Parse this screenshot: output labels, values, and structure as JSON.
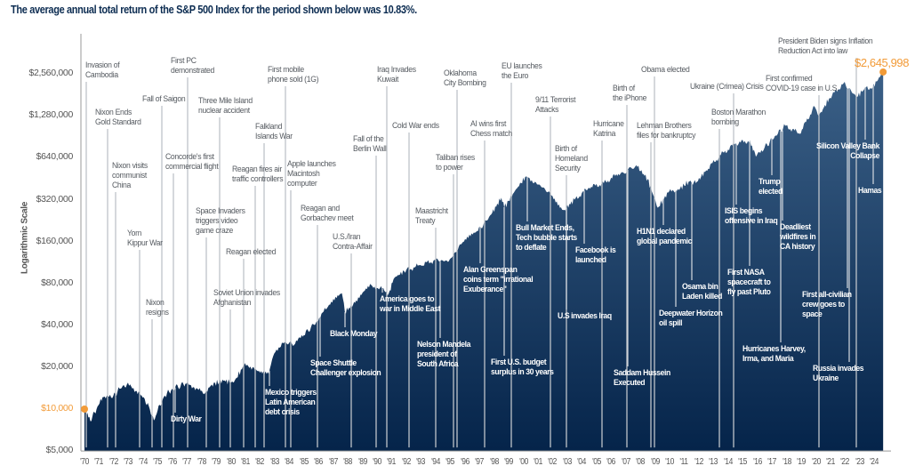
{
  "chart_data": {
    "type": "area",
    "title": "The average annual total return of the S&P 500 Index for the period shown below was 10.83%.",
    "ylabel": "Logarithmic Scale",
    "yscale": "log",
    "ylim": [
      5000,
      2560000
    ],
    "ytick_labels": [
      "$5,000",
      "$10,000",
      "$20,000",
      "$40,000",
      "$80,000",
      "$160,000",
      "$320,000",
      "$640,000",
      "$1,280,000",
      "$2,560,000"
    ],
    "ytick_values": [
      5000,
      10000,
      20000,
      40000,
      80000,
      160000,
      320000,
      640000,
      1280000,
      2560000
    ],
    "xtick_labels": [
      "'70",
      "'71",
      "'72",
      "'73",
      "'74",
      "'75",
      "'76",
      "'77",
      "'78",
      "'79",
      "'80",
      "'81",
      "'82",
      "'83",
      "'84",
      "'85",
      "'86",
      "'87",
      "'88",
      "'89",
      "'90",
      "'91",
      "'92",
      "'93",
      "'94",
      "'95",
      "'96",
      "'97",
      "'98",
      "'99",
      "'00",
      "'01",
      "'02",
      "'03",
      "'04",
      "'05",
      "'06",
      "'07",
      "'08",
      "'09",
      "'10",
      "'11",
      "'12",
      "'13",
      "'14",
      "'15",
      "'16",
      "'17",
      "'18",
      "'19",
      "'20",
      "'21",
      "'22",
      "'23",
      "'24"
    ],
    "grid": false,
    "start_label": "$10,000",
    "end_label": "$2,645,998",
    "series": [
      {
        "x": [
          1970.0,
          1970.4,
          1970.9,
          1971.3,
          1971.9,
          1972.4,
          1972.9,
          1973.5,
          1973.9,
          1974.4,
          1974.75,
          1975.0,
          1975.5,
          1976.0,
          1976.9,
          1977.5,
          1978.1,
          1978.7,
          1979.5,
          1980.2,
          1980.9,
          1981.5,
          1982.6,
          1982.9,
          1983.5,
          1984.4,
          1985.0,
          1985.9,
          1986.5,
          1987.6,
          1987.8,
          1988.5,
          1989.6,
          1990.2,
          1990.8,
          1991.2,
          1992.0,
          1993.0,
          1994.0,
          1994.9,
          1995.8,
          1996.9,
          1997.8,
          1998.5,
          1998.7,
          1999.5,
          2000.2,
          2000.8,
          2001.7,
          2002.8,
          2003.5,
          2004.5,
          2005.5,
          2006.5,
          2007.8,
          2008.5,
          2009.2,
          2009.9,
          2010.5,
          2011.3,
          2011.8,
          2012.5,
          2013.5,
          2014.5,
          2015.5,
          2015.9,
          2016.5,
          2017.9,
          2018.9,
          2019.9,
          2020.2,
          2020.9,
          2021.9,
          2022.8,
          2023.5,
          2023.8,
          2024.6
        ],
        "values": [
          10000,
          8200,
          10500,
          12200,
          12000,
          14000,
          15000,
          13500,
          12500,
          10500,
          8300,
          9800,
          12500,
          14000,
          15200,
          14300,
          13000,
          15000,
          16000,
          15500,
          20500,
          20000,
          18000,
          24000,
          30000,
          29500,
          34000,
          43000,
          52000,
          68000,
          50000,
          58000,
          78000,
          74000,
          68000,
          88000,
          100000,
          108000,
          118000,
          115000,
          155000,
          190000,
          250000,
          330000,
          280000,
          380000,
          470000,
          430000,
          365000,
          270000,
          320000,
          390000,
          420000,
          490000,
          550000,
          450000,
          280000,
          360000,
          370000,
          430000,
          420000,
          520000,
          670000,
          810000,
          850000,
          650000,
          760000,
          1090000,
          950000,
          1500000,
          1270000,
          1700000,
          2200000,
          1750000,
          2100000,
          2000000,
          2645998
        ]
      }
    ],
    "colors": {
      "area_top": "#3b6087",
      "area_bottom": "#05244a",
      "accent": "#f29b38",
      "title": "#0d2d52"
    }
  },
  "annotations": [
    {
      "text": "Invasion of\nCambodia"
    },
    {
      "text": "Nixon Ends\nGold Standard"
    },
    {
      "text": "Nixon visits\ncommunist\nChina"
    },
    {
      "text": "Yom\nKippur War"
    },
    {
      "text": "Nixon\nresigns"
    },
    {
      "text": "Fall of Saigon"
    },
    {
      "text": "First PC\ndemonstrated"
    },
    {
      "text": "Concorde's first\ncommercial flight"
    },
    {
      "text": "Space Invaders\ntriggers video\ngame craze"
    },
    {
      "text": "Three Mile Island\nnuclear accident"
    },
    {
      "text": "Reagan elected"
    },
    {
      "text": "Soviet Union invades\nAfghanistan"
    },
    {
      "text": "Reagan fires air\ntraffic controllers"
    },
    {
      "text": "Falkland\nIslands War"
    },
    {
      "text": "First mobile\nphone sold (1G)"
    },
    {
      "text": "Apple launches\nMacintosh\ncomputer"
    },
    {
      "text": "Reagan and\nGorbachev meet"
    },
    {
      "text": "U.S./Iran\nContra-Affair"
    },
    {
      "text": "Fall of the\nBerlin Wall"
    },
    {
      "text": "Iraq Invades\nKuwait"
    },
    {
      "text": "Cold War ends"
    },
    {
      "text": "Maastricht\nTreaty"
    },
    {
      "text": "Taliban rises\nto power"
    },
    {
      "text": "Oklahoma\nCity Bombing"
    },
    {
      "text": "AI wins first\nChess match"
    },
    {
      "text": "EU launches\nthe Euro"
    },
    {
      "text": "9/11 Terrorist\nAttacks"
    },
    {
      "text": "Birth of\nHomeland\nSecurity"
    },
    {
      "text": "Hurricane\nKatrina"
    },
    {
      "text": "Birth of\nthe iPhone"
    },
    {
      "text": "Obama elected"
    },
    {
      "text": "Lehman Brothers\nfiles for bankruptcy"
    },
    {
      "text": "Ukraine (Crimea) Crisis"
    },
    {
      "text": "Boston Marathon\nbombing"
    },
    {
      "text": "First confirmed\nCOVID-19 case in U.S."
    },
    {
      "text": "President Biden signs Inflation\nReduction Act into law"
    },
    {
      "text": "Dirty War"
    },
    {
      "text": "Mexico triggers\nLatin American\ndebt crisis"
    },
    {
      "text": "Space Shuttle\nChallenger explosion"
    },
    {
      "text": "Black Monday"
    },
    {
      "text": "America goes to\nwar in Middle East"
    },
    {
      "text": "Nelson Mandela\npresident of\nSouth Africa"
    },
    {
      "text": "Alan Greenspan\ncoins term \"irrational\nExuberance\""
    },
    {
      "text": "Bull Market Ends,\nTech bubble starts\nto deflate"
    },
    {
      "text": "First U.S. budget\nsurplus in 30 years"
    },
    {
      "text": "U.S invades Iraq"
    },
    {
      "text": "Facebook is\nlaunched"
    },
    {
      "text": "Saddam Hussein\nExecuted"
    },
    {
      "text": "H1N1 declared\nglobal pandemic"
    },
    {
      "text": "Deepwater Horizon\noil spill"
    },
    {
      "text": "Osama bin\nLaden killed"
    },
    {
      "text": "ISIS begins\noffensive in Iraq"
    },
    {
      "text": "First NASA\nspacecraft to\nfly past Pluto"
    },
    {
      "text": "Trump\nelected"
    },
    {
      "text": "Deadliest\nwildfires in\nCA history"
    },
    {
      "text": "Hurricanes Harvey,\nIrma, and Maria"
    },
    {
      "text": "First all-civilian\ncrew goes to\nspace"
    },
    {
      "text": "Silicon Valley Bank\nCollapse"
    },
    {
      "text": "Hamas attacks\nIsrael"
    },
    {
      "text": "Russia invades\nUkraine"
    }
  ]
}
